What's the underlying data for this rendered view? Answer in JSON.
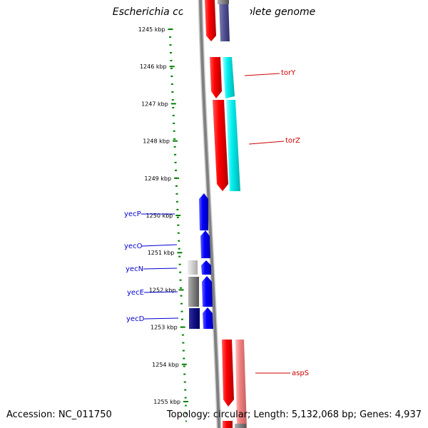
{
  "title": "Escherichia coli IAI39, complete genome",
  "footer": {
    "accession": "Accession: NC_011750",
    "topology": "Topology: circular; Length: 5,132,068 bp; Genes: 4,937"
  },
  "colors": {
    "forward_gene": "#ff0000",
    "reverse_gene": "#0000ff",
    "tick": "#008000",
    "backbone": "#808080",
    "label_forward": "#cc0000",
    "label_reverse": "#0000cc"
  },
  "ticks": [
    {
      "kbp": 1245,
      "label": "1245 kbp"
    },
    {
      "kbp": 1246,
      "label": "1246 kbp"
    },
    {
      "kbp": 1247,
      "label": "1247 kbp"
    },
    {
      "kbp": 1248,
      "label": "1248 kbp"
    },
    {
      "kbp": 1249,
      "label": "1249 kbp"
    },
    {
      "kbp": 1250,
      "label": "1250 kbp"
    },
    {
      "kbp": 1251,
      "label": "1251 kbp"
    },
    {
      "kbp": 1252,
      "label": "1252 kbp"
    },
    {
      "kbp": 1253,
      "label": "1253 kbp"
    },
    {
      "kbp": 1254,
      "label": "1254 kbp"
    },
    {
      "kbp": 1255,
      "label": "1255 kbp"
    }
  ],
  "genes": [
    {
      "name": "torY",
      "strand": "forward"
    },
    {
      "name": "torZ",
      "strand": "forward"
    },
    {
      "name": "yecP",
      "strand": "reverse"
    },
    {
      "name": "yecO",
      "strand": "reverse"
    },
    {
      "name": "yecN",
      "strand": "reverse"
    },
    {
      "name": "yecE",
      "strand": "reverse"
    },
    {
      "name": "yecD",
      "strand": "reverse"
    },
    {
      "name": "aspS",
      "strand": "forward"
    }
  ]
}
